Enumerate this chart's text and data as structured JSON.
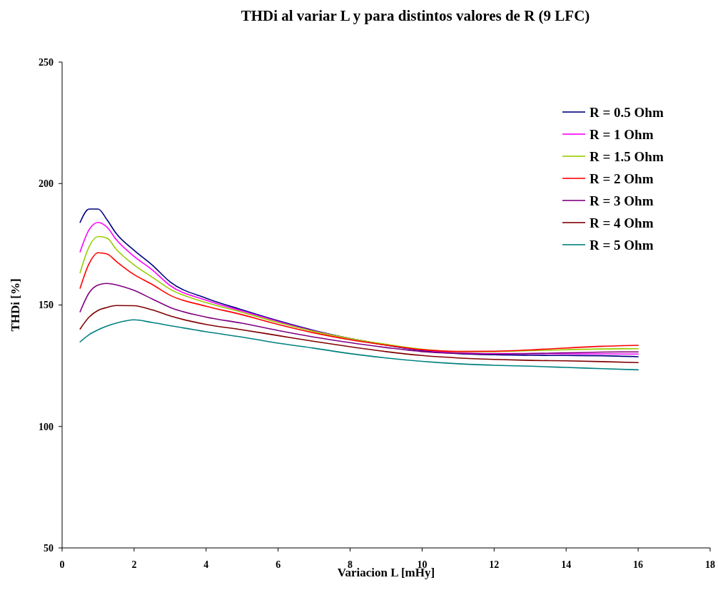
{
  "chart_data": {
    "type": "line",
    "title": "THDi al variar L y para distintos valores de R (9 LFC)",
    "xlabel": "Variacion L [mHy]",
    "ylabel": "THDi [%]",
    "x": [
      0.5,
      0.75,
      1,
      1.25,
      1.5,
      2,
      2.5,
      3,
      4,
      5,
      6,
      7,
      8,
      9,
      10,
      11,
      12,
      13,
      14,
      15,
      16
    ],
    "series": [
      {
        "name": "R = 0.5 Ohm",
        "color": "#000080",
        "values": [
          184,
          189.5,
          189.5,
          185,
          179.5,
          172.5,
          166.5,
          159.5,
          152.8,
          148,
          143.5,
          139.5,
          136.2,
          133.5,
          131.2,
          130,
          129.5,
          129.3,
          129.2,
          129.1,
          128.7
        ]
      },
      {
        "name": "R = 1 Ohm",
        "color": "#ff00ff",
        "values": [
          171.9,
          181,
          184,
          182,
          177,
          170,
          164.5,
          158,
          152,
          147.5,
          143.2,
          139.3,
          136.2,
          133.6,
          131.5,
          130.4,
          130,
          130,
          129.9,
          129.9,
          129.8
        ]
      },
      {
        "name": "R = 1.5 Ohm",
        "color": "#99cc00",
        "values": [
          163.3,
          174,
          178.2,
          177.5,
          173,
          166.5,
          161.5,
          156.5,
          151,
          147,
          142.8,
          139.1,
          136.2,
          133.8,
          131.8,
          130.8,
          130.8,
          131.2,
          131.6,
          131.9,
          132
        ]
      },
      {
        "name": "R = 2 Ohm",
        "color": "#ff0000",
        "values": [
          156.9,
          167,
          171.5,
          171,
          168,
          162.5,
          158.5,
          154,
          149.5,
          146,
          142,
          138.5,
          135.7,
          133.5,
          131.6,
          130.9,
          131,
          131.5,
          132.3,
          133,
          133.4
        ]
      },
      {
        "name": "R = 3 Ohm",
        "color": "#800080",
        "values": [
          147.2,
          155,
          158.2,
          158.9,
          158.3,
          156,
          152.5,
          149,
          145,
          142.5,
          139.5,
          136.8,
          134.5,
          132.5,
          130.8,
          130.1,
          129.8,
          130,
          130.3,
          130.6,
          130.7
        ]
      },
      {
        "name": "R = 4 Ohm",
        "color": "#800000",
        "values": [
          140.1,
          145,
          147.8,
          149,
          149.8,
          149.7,
          148,
          145.5,
          142,
          139.8,
          137.4,
          135,
          132.8,
          130.8,
          129.2,
          128.2,
          127.6,
          127.2,
          127,
          126.7,
          126.3
        ]
      },
      {
        "name": "R = 5 Ohm",
        "color": "#008080",
        "values": [
          134.8,
          137.8,
          139.8,
          141.3,
          142.5,
          143.9,
          142.8,
          141.5,
          139,
          136.8,
          134.3,
          132.2,
          130,
          128.2,
          126.8,
          125.8,
          125.2,
          124.8,
          124.3,
          123.8,
          123.3
        ]
      }
    ],
    "xlim": [
      0,
      18
    ],
    "xticks": [
      0,
      2,
      4,
      6,
      8,
      10,
      12,
      14,
      16,
      18
    ],
    "ylim": [
      50,
      250
    ],
    "yticks": [
      50,
      100,
      150,
      200,
      250
    ],
    "grid": false,
    "legend": "top right",
    "marker": "none",
    "line_style": "solid"
  }
}
